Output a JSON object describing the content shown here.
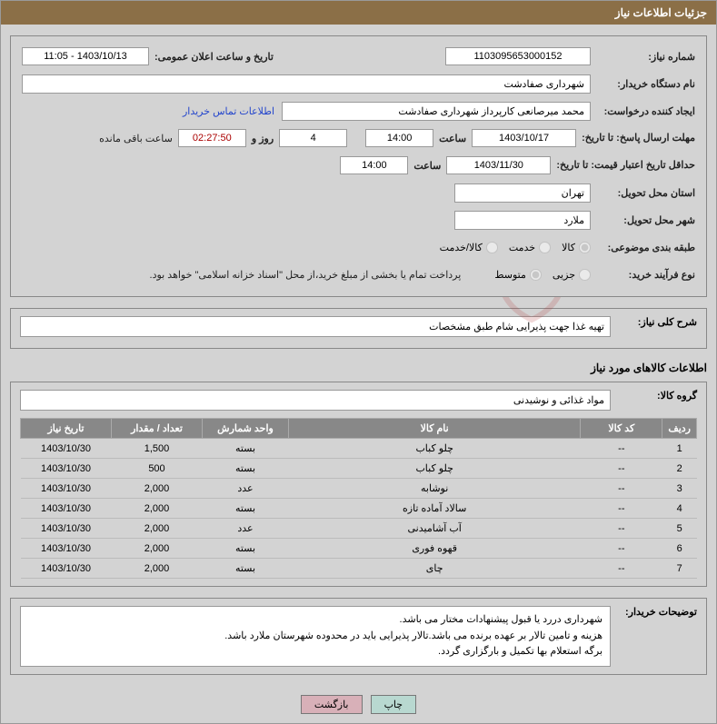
{
  "header": {
    "title": "جزئیات اطلاعات نیاز"
  },
  "form": {
    "need_no_label": "شماره نیاز:",
    "need_no": "1103095653000152",
    "announce_label": "تاریخ و ساعت اعلان عمومی:",
    "announce_value": "1403/10/13 - 11:05",
    "buyer_org_label": "نام دستگاه خریدار:",
    "buyer_org": "شهرداری صفادشت",
    "requester_label": "ایجاد کننده درخواست:",
    "requester": "محمد میرصانعی کارپرداز شهرداری صفادشت",
    "contact_link": "اطلاعات تماس خریدار",
    "deadline_label": "مهلت ارسال پاسخ: تا تاریخ:",
    "deadline_date": "1403/10/17",
    "deadline_time_label": "ساعت",
    "deadline_time": "14:00",
    "remain_days": "4",
    "remain_days_label": "روز و",
    "remain_time": "02:27:50",
    "remain_suffix": "ساعت باقی مانده",
    "validity_label": "حداقل تاریخ اعتبار قیمت: تا تاریخ:",
    "validity_date": "1403/11/30",
    "validity_time": "14:00",
    "province_label": "استان محل تحویل:",
    "province": "تهران",
    "city_label": "شهر محل تحویل:",
    "city": "ملارد",
    "category_label": "طبقه بندی موضوعی:",
    "cat_goods": "کالا",
    "cat_service": "خدمت",
    "cat_both": "کالا/خدمت",
    "purchase_type_label": "نوع فرآیند خرید:",
    "pt_partial": "جزیی",
    "pt_medium": "متوسط",
    "payment_note": "پرداخت تمام یا بخشی از مبلغ خرید،از محل \"اسناد خزانه اسلامی\" خواهد بود."
  },
  "details": {
    "summary_label": "شرح کلی نیاز:",
    "summary": "تهیه غذا جهت پذیرایی شام طبق مشخصات",
    "section_title": "اطلاعات کالاهای مورد نیاز",
    "group_label": "گروه کالا:",
    "group": "مواد غذائی و نوشیدنی"
  },
  "table": {
    "headers": {
      "row": "ردیف",
      "code": "کد کالا",
      "name": "نام کالا",
      "unit": "واحد شمارش",
      "qty": "تعداد / مقدار",
      "date": "تاریخ نیاز"
    },
    "rows": [
      {
        "n": "1",
        "code": "--",
        "name": "چلو کباب",
        "unit": "بسته",
        "qty": "1,500",
        "date": "1403/10/30"
      },
      {
        "n": "2",
        "code": "--",
        "name": "چلو کباب",
        "unit": "بسته",
        "qty": "500",
        "date": "1403/10/30"
      },
      {
        "n": "3",
        "code": "--",
        "name": "نوشابه",
        "unit": "عدد",
        "qty": "2,000",
        "date": "1403/10/30"
      },
      {
        "n": "4",
        "code": "--",
        "name": "سالاد آماده تازه",
        "unit": "بسته",
        "qty": "2,000",
        "date": "1403/10/30"
      },
      {
        "n": "5",
        "code": "--",
        "name": "آب آشامیدنی",
        "unit": "عدد",
        "qty": "2,000",
        "date": "1403/10/30"
      },
      {
        "n": "6",
        "code": "--",
        "name": "قهوه فوری",
        "unit": "بسته",
        "qty": "2,000",
        "date": "1403/10/30"
      },
      {
        "n": "7",
        "code": "--",
        "name": "چای",
        "unit": "بسته",
        "qty": "2,000",
        "date": "1403/10/30"
      }
    ]
  },
  "buyer_notes": {
    "label": "توضیحات خریدار:",
    "line1": "شهرداری دررد یا قبول پیشنهادات مختار می باشد.",
    "line2": "هزینه و تامین تالار بر عهده برنده می باشد.تالار پذیرایی باید در محدوده شهرستان ملارد باشد.",
    "line3": "برگه استعلام بها تکمیل و بارگزاری گردد."
  },
  "buttons": {
    "print": "چاپ",
    "back": "بازگشت"
  },
  "colors": {
    "header_bg": "#8b6f47",
    "panel_bg": "#d3d3d3",
    "th_bg": "#888888"
  }
}
